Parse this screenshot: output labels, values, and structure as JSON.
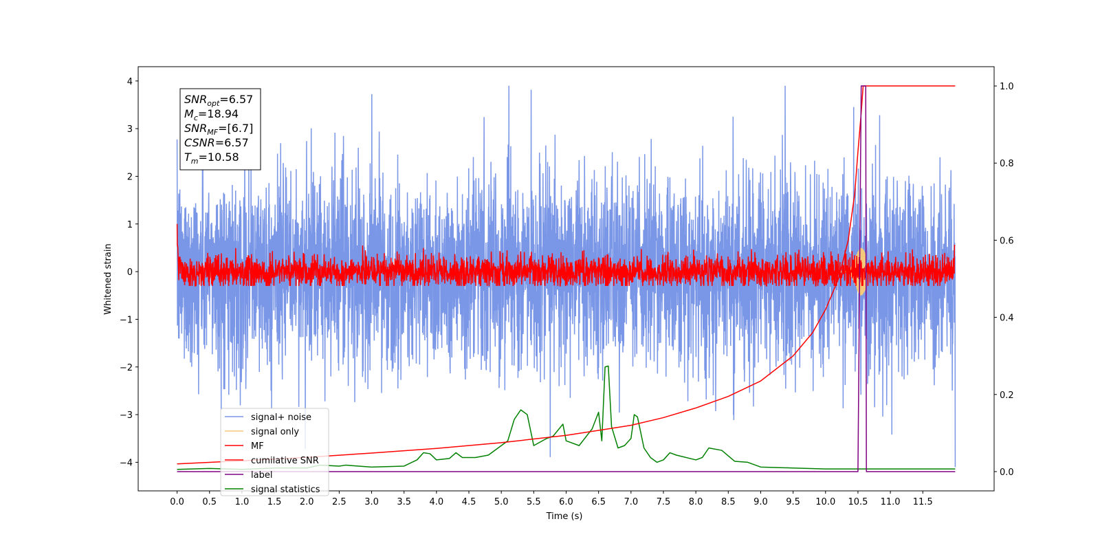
{
  "chart_data": {
    "type": "line",
    "title": "",
    "xlabel": "Time (s)",
    "ylabel": "Whitened strain",
    "xlim": [
      -0.6,
      12.6
    ],
    "ylim": [
      -4.6,
      4.3
    ],
    "y2lim": [
      -0.05,
      1.05
    ],
    "x_ticks": [
      "0.0",
      "0.5",
      "1.0",
      "1.5",
      "2.0",
      "2.5",
      "3.0",
      "3.5",
      "4.0",
      "4.5",
      "5.0",
      "5.5",
      "6.0",
      "6.5",
      "7.0",
      "7.5",
      "8.0",
      "8.5",
      "9.0",
      "9.5",
      "10.0",
      "10.5",
      "11.0",
      "11.5"
    ],
    "y_ticks": [
      4,
      3,
      2,
      1,
      0,
      -1,
      -2,
      -3,
      -4
    ],
    "y_tick_labels": [
      "4",
      "3",
      "2",
      "1",
      "0",
      "−1",
      "−2",
      "−3",
      "−4"
    ],
    "y2_ticks": [
      0.0,
      0.2,
      0.4,
      0.6,
      0.8,
      1.0
    ],
    "y2_tick_labels": [
      "0.0",
      "0.2",
      "0.4",
      "0.6",
      "0.8",
      "1.0"
    ],
    "annotation": {
      "lines": [
        {
          "sym": "SNR",
          "sub": "opt",
          "val": "=6.57"
        },
        {
          "sym": "M",
          "sub": "c",
          "val": "=18.94"
        },
        {
          "sym": "SNR",
          "sub": "MF",
          "val": "=[6.7]"
        },
        {
          "sym": "CSNR",
          "sub": "",
          "val": "=6.57"
        },
        {
          "sym": "T",
          "sub": "m",
          "val": "=10.58"
        }
      ]
    },
    "legend": {
      "position": "lower-left",
      "entries": [
        {
          "label": "signal+ noise",
          "color": "#7a96e6"
        },
        {
          "label": "signal only",
          "color": "#f5c97a"
        },
        {
          "label": "MF",
          "color": "#ff0000"
        },
        {
          "label": "cumilative SNR",
          "color": "#ff0000"
        },
        {
          "label": "label",
          "color": "#800080"
        },
        {
          "label": "signal statistics",
          "color": "#008000"
        }
      ]
    },
    "series": [
      {
        "name": "signal+ noise",
        "axis": "left",
        "color": "#7a96e6",
        "x_range": [
          0.0,
          12.0
        ],
        "approx_peak_abs": 3.9,
        "noise_std": 1.0
      },
      {
        "name": "signal only",
        "axis": "left",
        "color": "#f5c97a",
        "chirp_peak_time": 10.55,
        "peak_amplitude": 0.5
      },
      {
        "name": "MF",
        "axis": "left",
        "color": "#ff0000",
        "x_range": [
          0.0,
          12.0
        ],
        "noise_std": 0.17,
        "start_value": 1.0,
        "end_value": 0.85
      },
      {
        "name": "cumilative SNR",
        "axis": "right",
        "color": "#ff0000",
        "x": [
          0.0,
          1.0,
          2.0,
          3.0,
          4.0,
          5.0,
          6.0,
          7.0,
          7.5,
          8.0,
          8.5,
          9.0,
          9.5,
          9.8,
          10.0,
          10.2,
          10.35,
          10.45,
          10.5,
          10.55,
          10.58,
          11.0,
          12.0
        ],
        "values": [
          0.02,
          0.028,
          0.037,
          0.048,
          0.06,
          0.075,
          0.094,
          0.12,
          0.14,
          0.165,
          0.195,
          0.235,
          0.3,
          0.36,
          0.42,
          0.5,
          0.6,
          0.72,
          0.83,
          0.93,
          1.0,
          1.0,
          1.0
        ]
      },
      {
        "name": "label",
        "axis": "right",
        "color": "#800080",
        "x": [
          0.0,
          10.5,
          10.55,
          10.62,
          10.63,
          12.0
        ],
        "values": [
          0.0,
          0.0,
          1.0,
          1.0,
          0.0,
          0.0
        ]
      },
      {
        "name": "signal statistics",
        "axis": "left",
        "color": "#008000",
        "x": [
          0.0,
          0.5,
          1.0,
          1.5,
          2.0,
          2.2,
          2.5,
          2.6,
          3.0,
          3.5,
          3.7,
          3.8,
          3.9,
          4.0,
          4.2,
          4.3,
          4.4,
          4.6,
          4.8,
          5.0,
          5.1,
          5.2,
          5.3,
          5.4,
          5.5,
          5.7,
          5.8,
          5.95,
          6.0,
          6.2,
          6.4,
          6.5,
          6.55,
          6.6,
          6.65,
          6.7,
          6.8,
          6.9,
          7.0,
          7.05,
          7.1,
          7.2,
          7.3,
          7.4,
          7.5,
          7.6,
          7.7,
          8.0,
          8.1,
          8.2,
          8.4,
          8.6,
          8.8,
          9.0,
          9.5,
          10.0,
          12.0
        ],
        "values": [
          -4.15,
          -4.13,
          -4.15,
          -4.12,
          -4.12,
          -4.06,
          -4.08,
          -4.06,
          -4.1,
          -4.08,
          -3.95,
          -3.8,
          -3.82,
          -3.95,
          -3.92,
          -3.8,
          -3.9,
          -3.9,
          -3.85,
          -3.65,
          -3.55,
          -3.1,
          -2.9,
          -3.0,
          -3.65,
          -3.5,
          -3.45,
          -3.2,
          -3.55,
          -3.65,
          -3.3,
          -2.95,
          -3.55,
          -2.0,
          -1.98,
          -3.25,
          -3.7,
          -3.65,
          -3.5,
          -3.0,
          -3.05,
          -3.7,
          -3.9,
          -4.0,
          -3.95,
          -3.8,
          -3.85,
          -3.95,
          -3.9,
          -3.7,
          -3.75,
          -3.98,
          -4.0,
          -4.1,
          -4.12,
          -4.14,
          -4.14
        ]
      }
    ]
  }
}
